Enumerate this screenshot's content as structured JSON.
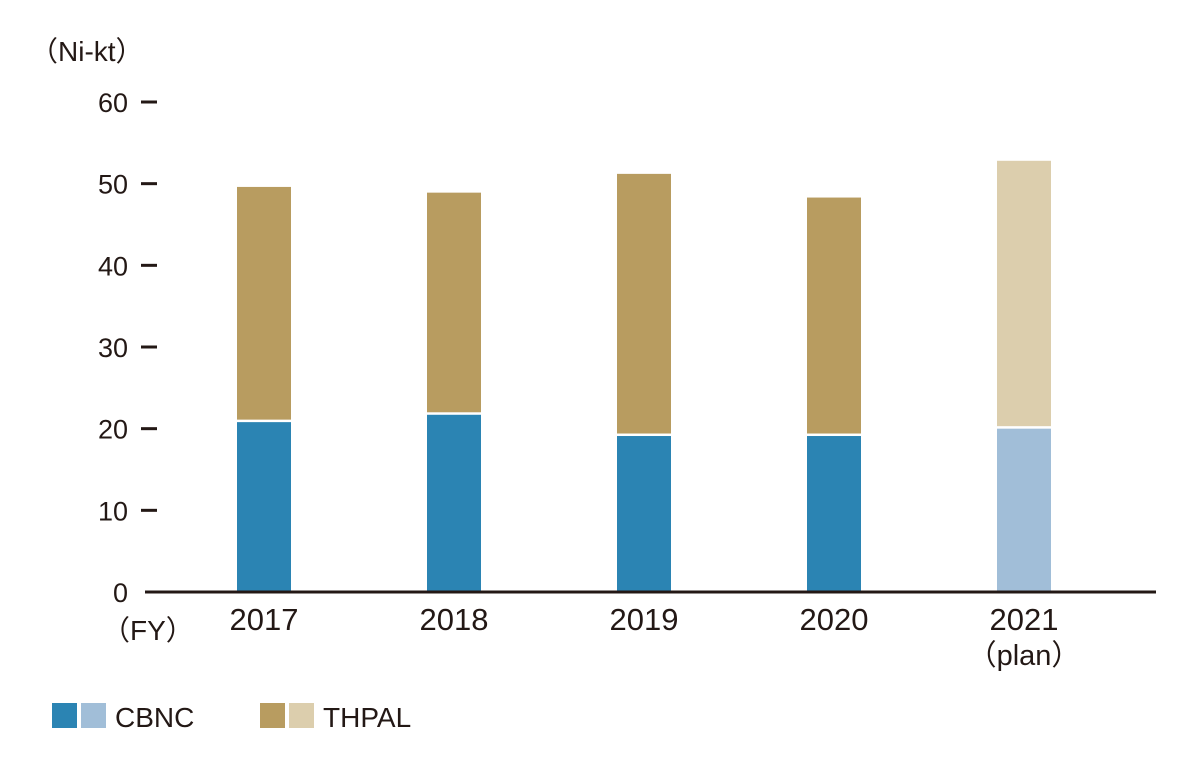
{
  "chart_data": {
    "type": "bar",
    "stacked": true,
    "y_unit_label": "（Ni-kt）",
    "x_unit_label": "（FY）",
    "ylim": [
      0,
      60
    ],
    "yticks": [
      0,
      10,
      20,
      30,
      40,
      50,
      60
    ],
    "categories": [
      {
        "label": "2017",
        "sublabel": ""
      },
      {
        "label": "2018",
        "sublabel": ""
      },
      {
        "label": "2019",
        "sublabel": ""
      },
      {
        "label": "2020",
        "sublabel": ""
      },
      {
        "label": "2021",
        "sublabel": "（plan）"
      }
    ],
    "plan_flags": [
      false,
      false,
      false,
      false,
      true
    ],
    "series": [
      {
        "name": "CBNC",
        "values": [
          20.8,
          21.7,
          19.1,
          19.1,
          20.0
        ],
        "color": "#2b84b3",
        "plan_color": "#a1bed8"
      },
      {
        "name": "THPAL",
        "values": [
          28.8,
          27.2,
          32.1,
          29.2,
          32.8
        ],
        "color": "#b89c60",
        "plan_color": "#dccead"
      }
    ],
    "grid": false,
    "legend_position": "bottom-left"
  }
}
